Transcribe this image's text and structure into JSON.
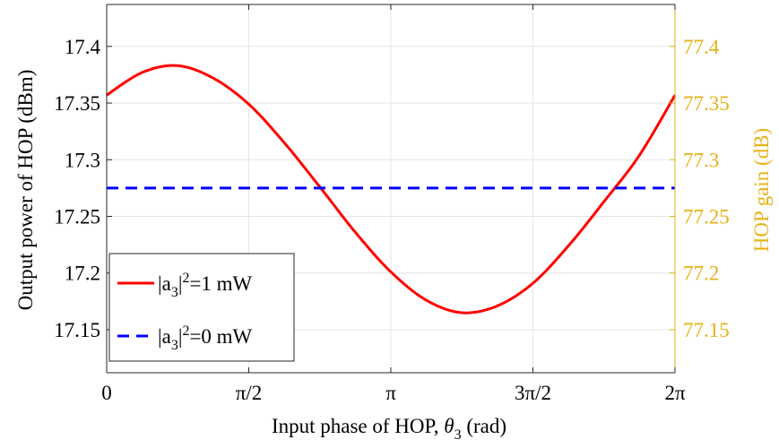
{
  "chart_data": {
    "type": "line",
    "xlabel_main": "Input phase of HOP, ",
    "xlabel_symbol": "θ",
    "xlabel_sub": "3",
    "xlabel_unit": " (rad)",
    "ylabel_left": "Output power of HOP (dBm)",
    "ylabel_right": "HOP gain (dB)",
    "xlim": [
      0,
      6.2832
    ],
    "ylim_left": [
      17.112,
      17.437
    ],
    "ylim_right": [
      77.112,
      77.437
    ],
    "x_ticks": [
      {
        "value": 0,
        "label": "0"
      },
      {
        "value": 1.5708,
        "label": "π/2"
      },
      {
        "value": 3.1416,
        "label": "π"
      },
      {
        "value": 4.7124,
        "label": "3π/2"
      },
      {
        "value": 6.2832,
        "label": "2π"
      }
    ],
    "y_ticks_left": [
      {
        "value": 17.15,
        "label": "17.15"
      },
      {
        "value": 17.2,
        "label": "17.2"
      },
      {
        "value": 17.25,
        "label": "17.25"
      },
      {
        "value": 17.3,
        "label": "17.3"
      },
      {
        "value": 17.35,
        "label": "17.35"
      },
      {
        "value": 17.4,
        "label": "17.4"
      }
    ],
    "y_ticks_right": [
      {
        "value": 77.15,
        "label": "77.15"
      },
      {
        "value": 77.2,
        "label": "77.2"
      },
      {
        "value": 77.25,
        "label": "77.25"
      },
      {
        "value": 77.3,
        "label": "77.3"
      },
      {
        "value": 77.35,
        "label": "77.35"
      },
      {
        "value": 77.4,
        "label": "77.4"
      }
    ],
    "grid": true,
    "legend_position": "bottom-left",
    "series": [
      {
        "name": "|a3|2=1 mW",
        "legend_pre": "|a",
        "legend_sub": "3",
        "legend_mid": "|",
        "legend_sup": "2",
        "legend_post": "=1 mW",
        "color": "#ff0000",
        "style": "solid",
        "x": [
          0,
          0.3927,
          0.7854,
          1.1781,
          1.5708,
          1.9635,
          2.3562,
          2.7489,
          3.1416,
          3.5343,
          3.927,
          4.3197,
          4.7124,
          5.1051,
          5.4978,
          5.8905,
          6.2832
        ],
        "y": [
          17.357,
          17.377,
          17.383,
          17.372,
          17.349,
          17.315,
          17.276,
          17.236,
          17.201,
          17.176,
          17.165,
          17.171,
          17.191,
          17.224,
          17.263,
          17.304,
          17.357
        ]
      },
      {
        "name": "|a3|2=0 mW",
        "legend_pre": "|a",
        "legend_sub": "3",
        "legend_mid": "|",
        "legend_sup": "2",
        "legend_post": "=0 mW",
        "color": "#0000ff",
        "style": "dashed",
        "x": [
          0,
          6.2832
        ],
        "y": [
          17.275,
          17.275
        ]
      }
    ],
    "colors": {
      "left_axis": "#262626",
      "right_axis": "#e6b117",
      "grid": "#e6e6e6",
      "frame": "#262626"
    }
  }
}
